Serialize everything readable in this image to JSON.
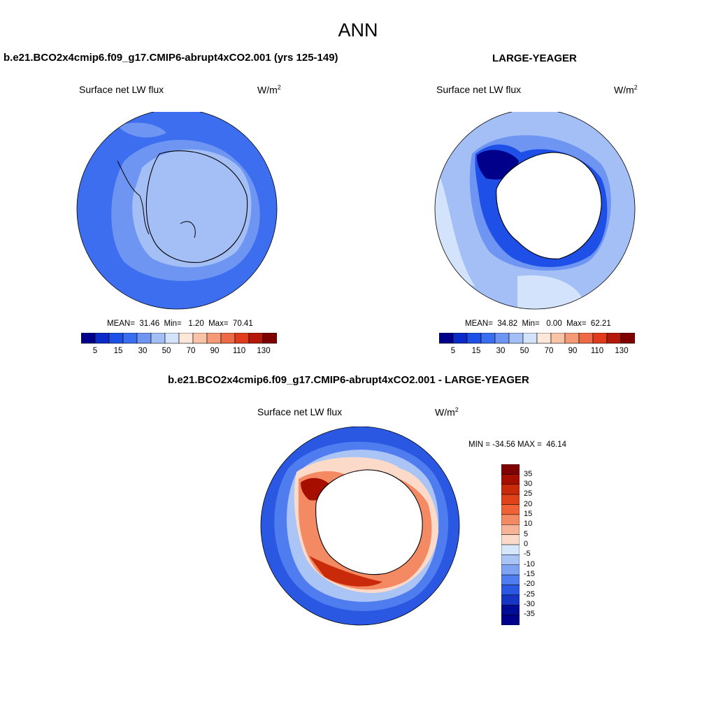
{
  "title": "ANN",
  "panels": [
    {
      "case_title": "b.e21.BCO2x4cmip6.f09_g17.CMIP6-abrupt4xCO2.001 (yrs 125-149)",
      "variable": "Surface net LW flux",
      "units": "W/m",
      "units_sup": "2",
      "stats": "MEAN=  31.46  Min=   1.20  Max=  70.41",
      "colorbar_labels": [
        "5",
        "15",
        "30",
        "50",
        "70",
        "90",
        "110",
        "130"
      ]
    },
    {
      "case_title": "LARGE-YEAGER",
      "variable": "Surface net LW flux",
      "units": "W/m",
      "units_sup": "2",
      "stats": "MEAN=  34.82  Min=   0.00  Max=  62.21",
      "colorbar_labels": [
        "5",
        "15",
        "30",
        "50",
        "70",
        "90",
        "110",
        "130"
      ]
    },
    {
      "case_title": "b.e21.BCO2x4cmip6.f09_g17.CMIP6-abrupt4xCO2.001 - LARGE-YEAGER",
      "variable": "Surface net LW flux",
      "units": "W/m",
      "units_sup": "2",
      "stats": "MIN = -34.56 MAX =  46.14",
      "colorbar_labels": [
        "35",
        "30",
        "25",
        "20",
        "15",
        "10",
        "5",
        "0",
        "-5",
        "-10",
        "-15",
        "-20",
        "-25",
        "-30",
        "-35"
      ]
    }
  ],
  "colors": {
    "abs_scale": [
      "#00008b",
      "#0a2bc8",
      "#1e50e8",
      "#3a6ef0",
      "#6e95f2",
      "#a3bff6",
      "#d3e3fb",
      "#fde6da",
      "#f9c3a7",
      "#f49a76",
      "#ee6a47",
      "#e03b1c",
      "#b51808",
      "#7e0000"
    ],
    "diff_scale": [
      "#7e0000",
      "#a60f00",
      "#c92a09",
      "#e0421a",
      "#ef6236",
      "#f38a63",
      "#f7b398",
      "#fbdac9",
      "#d6e6fb",
      "#aac4f6",
      "#7ea3f2",
      "#4f7cef",
      "#2a58e2",
      "#1535c2",
      "#000c96",
      "#00008b"
    ]
  }
}
